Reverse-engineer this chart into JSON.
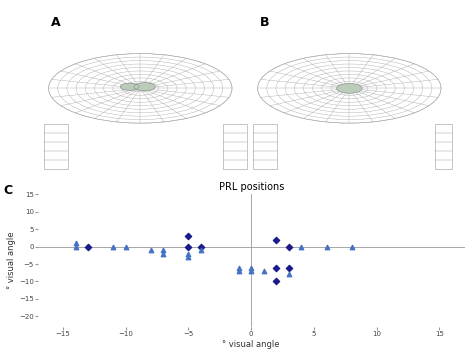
{
  "title": "PRL positions",
  "xlabel": "° visual angle",
  "ylabel": "° visual angle",
  "xlim": [
    -17,
    17
  ],
  "ylim": [
    -23,
    15
  ],
  "xticks": [
    -15,
    -10,
    -5,
    0,
    5,
    10,
    15
  ],
  "yticks": [
    -20,
    -15,
    -10,
    -5,
    0,
    5,
    10,
    15
  ],
  "panel_A_label": "A",
  "panel_B_label": "B",
  "panel_C_label": "C",
  "diamond_color": "#1a1a8c",
  "triangle_color": "#4472c4",
  "diamonds": [
    [
      -13,
      0
    ],
    [
      -5,
      3
    ],
    [
      -5,
      0
    ],
    [
      -4,
      0
    ],
    [
      2,
      2
    ],
    [
      3,
      0
    ],
    [
      2,
      -6
    ],
    [
      3,
      -6
    ],
    [
      2,
      -10
    ]
  ],
  "triangles": [
    [
      -14,
      0
    ],
    [
      -14,
      1
    ],
    [
      -11,
      0
    ],
    [
      -10,
      0
    ],
    [
      -8,
      -1
    ],
    [
      -7,
      -1
    ],
    [
      -7,
      -2
    ],
    [
      -5,
      -2
    ],
    [
      -5,
      -3
    ],
    [
      -4,
      -1
    ],
    [
      -1,
      -6
    ],
    [
      -1,
      -7
    ],
    [
      0,
      -6
    ],
    [
      0,
      -7
    ],
    [
      1,
      -7
    ],
    [
      3,
      -8
    ],
    [
      4,
      0
    ],
    [
      6,
      0
    ],
    [
      8,
      0
    ]
  ],
  "background_color": "#ffffff",
  "chart_line_color": "#aaaaaa",
  "axis_color": "#999999",
  "tick_fontsize": 5,
  "label_fontsize": 6,
  "title_fontsize": 7,
  "num_circles": 10,
  "num_radials": 24,
  "chart_linewidth": 0.3
}
